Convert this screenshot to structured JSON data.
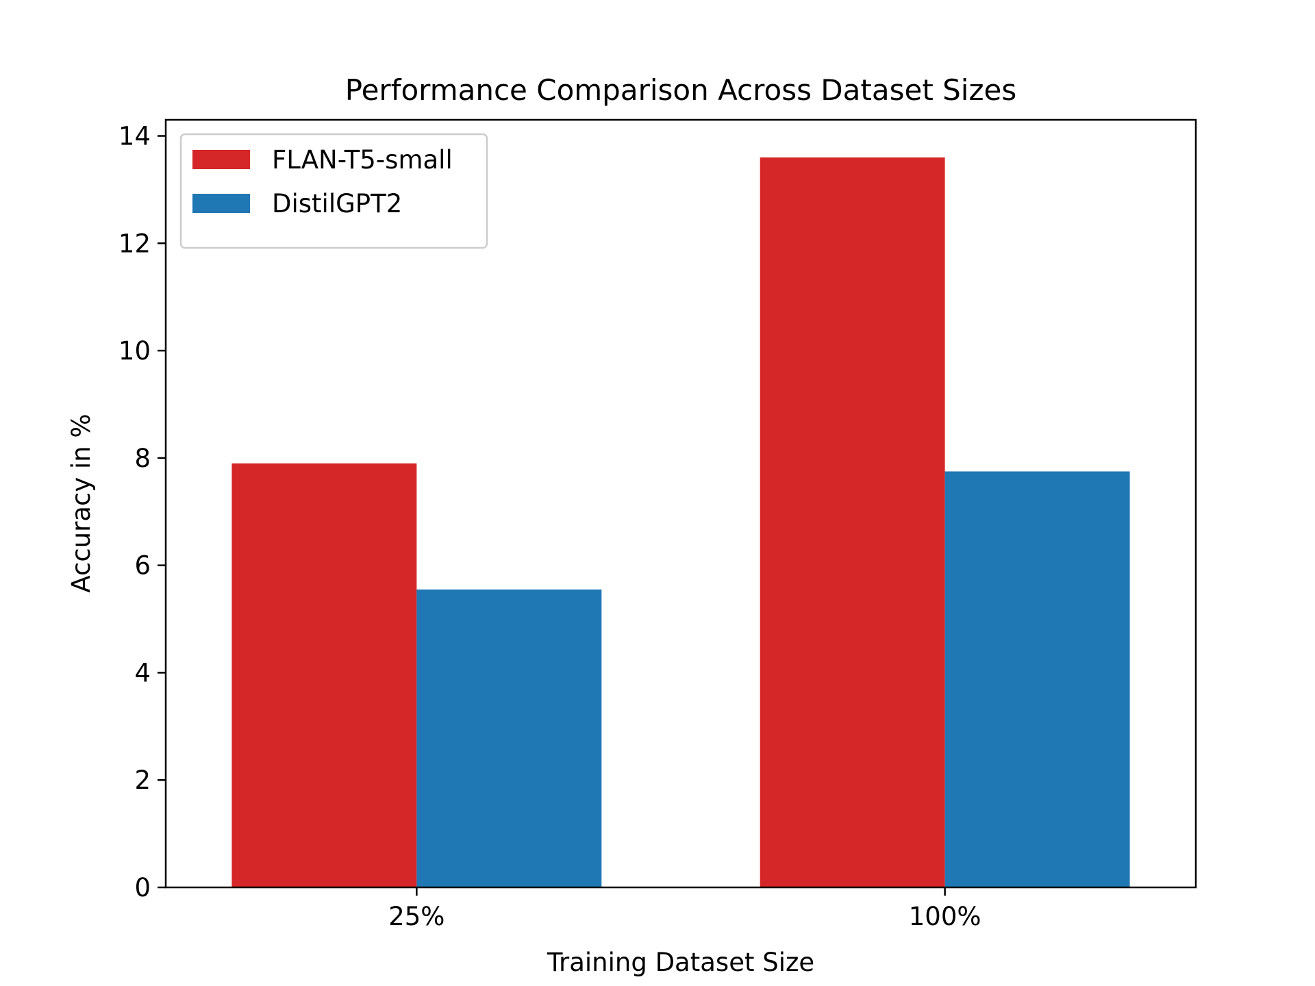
{
  "chart_data": {
    "type": "bar",
    "title": "Performance Comparison Across Dataset Sizes",
    "xlabel": "Training Dataset Size",
    "ylabel": "Accuracy in %",
    "categories": [
      "25%",
      "100%"
    ],
    "series": [
      {
        "name": "FLAN-T5-small",
        "color": "#d62728",
        "values": [
          7.9,
          13.6
        ]
      },
      {
        "name": "DistilGPT2",
        "color": "#1f77b4",
        "values": [
          5.55,
          7.75
        ]
      }
    ],
    "ylim": [
      0,
      14.3
    ],
    "yticks": [
      0,
      2,
      4,
      6,
      8,
      10,
      12,
      14
    ],
    "grid": false,
    "legend_position": "top-left"
  }
}
